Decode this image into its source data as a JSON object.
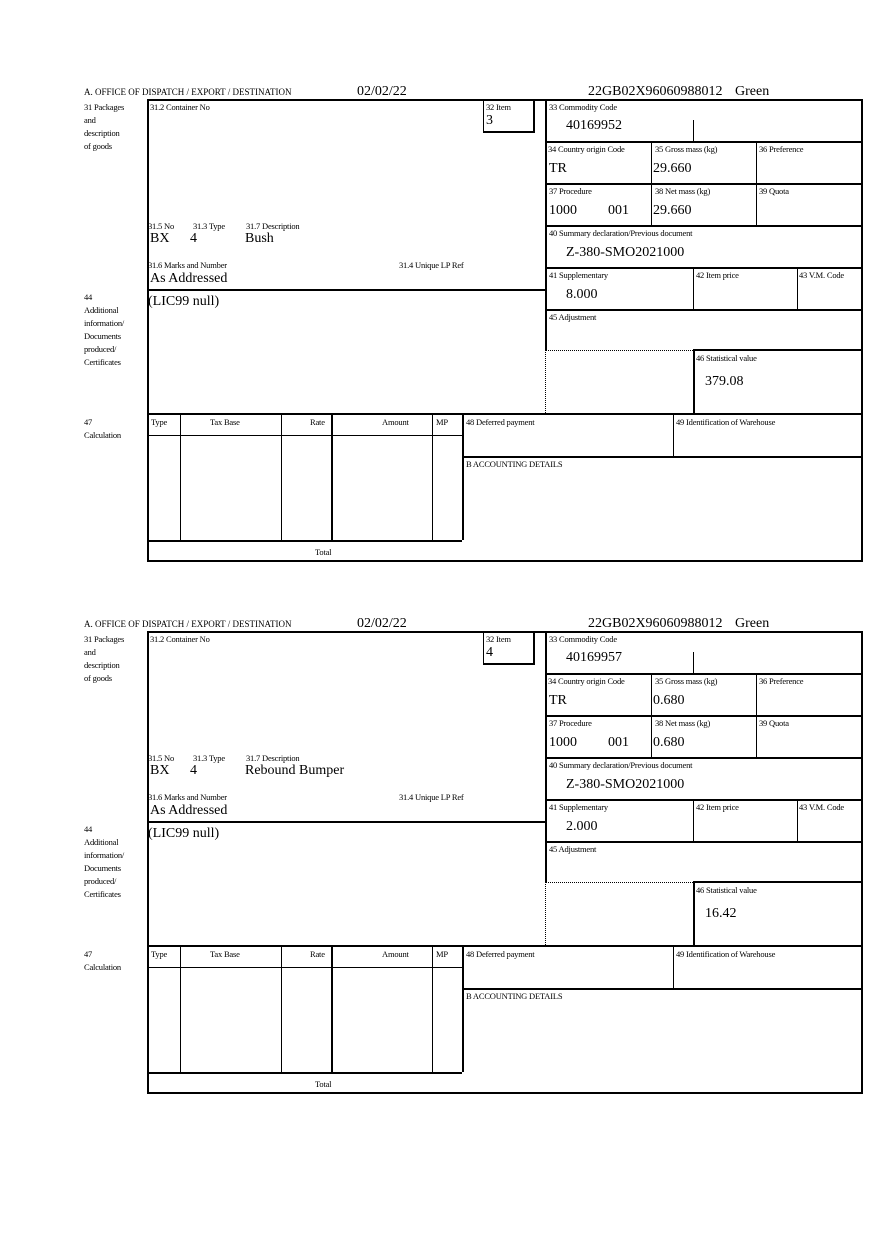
{
  "labels": {
    "office": "A. OFFICE OF DISPATCH / EXPORT / DESTINATION",
    "box31": [
      "31 Packages",
      "and",
      "description",
      "of goods"
    ],
    "container_no": "31.2 Container No",
    "item": "32 Item",
    "commodity_code": "33 Commodity Code",
    "country_origin": "34 Country origin Code",
    "gross_mass": "35 Gross mass (kg)",
    "preference": "36 Preference",
    "procedure": "37 Procedure",
    "net_mass": "38 Net mass (kg)",
    "quota": "39 Quota",
    "summary_decl": "40 Summary declaration/Previous document",
    "supplementary": "41 Supplementary",
    "item_price": "42 Item price",
    "vm_code": "43 V.M. Code",
    "adjustment": "45 Adjustment",
    "statistical_value": "46 Statistical value",
    "no": "31.5 No",
    "type": "31.3 Type",
    "description": "31.7 Description",
    "marks": "31.6 Marks and Number",
    "unique_lp": "31.4 Unique LP Ref",
    "box44": [
      "44",
      "Additional",
      "information/",
      "Documents",
      "produced/",
      "Certificates"
    ],
    "box47": [
      "47",
      "Calculation"
    ],
    "calc_cols": [
      "Type",
      "Tax Base",
      "Rate",
      "Amount",
      "MP"
    ],
    "total": "Total",
    "deferred_payment": "48 Deferred payment",
    "warehouse": "49 Identification of Warehouse",
    "accounting": "B ACCOUNTING DETAILS"
  },
  "forms": [
    {
      "date": "02/02/22",
      "reference": "22GB02X96060988012",
      "route": "Green",
      "item": "3",
      "commodity_code": "40169952",
      "country_origin": "TR",
      "gross_mass": "29.660",
      "procedure": "1000",
      "procedure_add": "001",
      "net_mass": "29.660",
      "summary_decl": "Z-380-SMO2021000",
      "supplementary": "8.000",
      "statistical_value": "379.08",
      "no": "BX",
      "type": "4",
      "description": "Bush",
      "marks": "As Addressed",
      "additional_info": "(LIC99 null)"
    },
    {
      "date": "02/02/22",
      "reference": "22GB02X96060988012",
      "route": "Green",
      "item": "4",
      "commodity_code": "40169957",
      "country_origin": "TR",
      "gross_mass": "0.680",
      "procedure": "1000",
      "procedure_add": "001",
      "net_mass": "0.680",
      "summary_decl": "Z-380-SMO2021000",
      "supplementary": "2.000",
      "statistical_value": "16.42",
      "no": "BX",
      "type": "4",
      "description": "Rebound Bumper",
      "marks": "As Addressed",
      "additional_info": "(LIC99 null)"
    }
  ]
}
